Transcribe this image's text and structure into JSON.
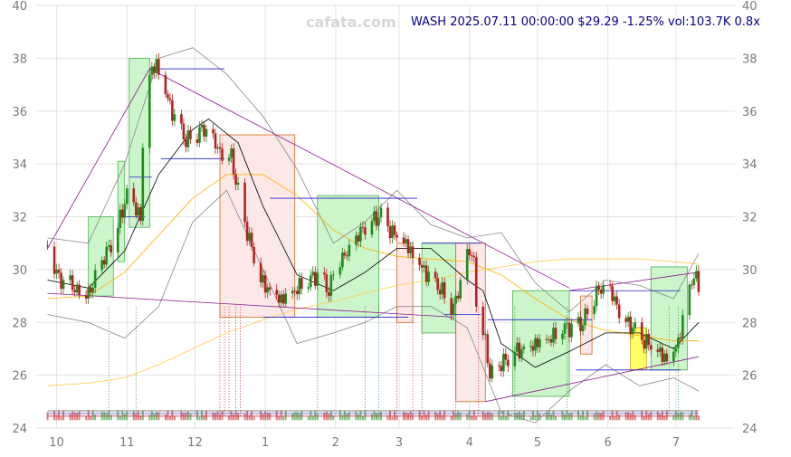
{
  "watermark": "cafata.com",
  "info_line": "WASH 2025.07.11 00:00:00 $29.29 -1.25% vol:103.7K 0.8x",
  "colors": {
    "up": "#1e8c1e",
    "down": "#b22222",
    "box_up_fill": "#ccf5cc",
    "box_down_fill": "#fde8e8",
    "box_yellow": "#ffff66",
    "ma_short": "#000000",
    "ma_mid": "#ffb000",
    "ma_long": "#ffcc44",
    "trend": "#8b1a8b",
    "level": "#2222cc",
    "band": "#888888"
  },
  "chart_data": {
    "type": "candlestick",
    "title": "WASH 2025.07.11 00:00:00 $29.29 -1.25% vol:103.7K 0.8x",
    "ticker": "WASH",
    "last_date": "2025.07.11",
    "last_close": 29.29,
    "change_pct": -1.25,
    "volume": "103.7K",
    "volume_ratio": "0.8x",
    "ylim": [
      24,
      40
    ],
    "xlim": [
      "2024-09-22",
      "2025-07-27"
    ],
    "y_ticks": [
      24,
      26,
      28,
      30,
      32,
      34,
      36,
      38,
      40
    ],
    "x_ticks": [
      {
        "date": "2024-10-01",
        "label": "10"
      },
      {
        "date": "2024-11-01",
        "label": "11"
      },
      {
        "date": "2024-12-01",
        "label": "12"
      },
      {
        "date": "2025-01-01",
        "label": "1"
      },
      {
        "date": "2025-02-01",
        "label": "2"
      },
      {
        "date": "2025-03-01",
        "label": "3"
      },
      {
        "date": "2025-04-01",
        "label": "4"
      },
      {
        "date": "2025-05-01",
        "label": "5"
      },
      {
        "date": "2025-06-01",
        "label": "6"
      },
      {
        "date": "2025-07-01",
        "label": "7"
      }
    ],
    "close_path": [
      [
        "2024-09-27",
        30.9
      ],
      [
        "2024-10-02",
        29.6
      ],
      [
        "2024-10-09",
        29.3
      ],
      [
        "2024-10-16",
        29.2
      ],
      [
        "2024-10-22",
        30.4
      ],
      [
        "2024-10-28",
        31.6
      ],
      [
        "2024-11-01",
        32.9
      ],
      [
        "2024-11-05",
        32.4
      ],
      [
        "2024-11-07",
        31.9
      ],
      [
        "2024-11-08",
        34.6
      ],
      [
        "2024-11-11",
        37.4
      ],
      [
        "2024-11-14",
        37.7
      ],
      [
        "2024-11-20",
        36.2
      ],
      [
        "2024-11-27",
        34.9
      ],
      [
        "2024-12-04",
        35.3
      ],
      [
        "2024-12-12",
        34.5
      ],
      [
        "2024-12-17",
        34.4
      ],
      [
        "2024-12-19",
        33.3
      ],
      [
        "2024-12-24",
        31.4
      ],
      [
        "2024-12-30",
        29.5
      ],
      [
        "2025-01-08",
        28.9
      ],
      [
        "2025-01-16",
        29.3
      ],
      [
        "2025-01-24",
        29.8
      ],
      [
        "2025-01-29",
        29.2
      ],
      [
        "2025-02-01",
        30.4
      ],
      [
        "2025-02-07",
        30.6
      ],
      [
        "2025-02-14",
        31.7
      ],
      [
        "2025-02-21",
        32.1
      ],
      [
        "2025-02-26",
        31.4
      ],
      [
        "2025-03-04",
        30.9
      ],
      [
        "2025-03-11",
        30.1
      ],
      [
        "2025-03-18",
        29.4
      ],
      [
        "2025-03-25",
        28.5
      ],
      [
        "2025-04-01",
        30.7
      ],
      [
        "2025-04-03",
        30.4
      ],
      [
        "2025-04-04",
        28.9
      ],
      [
        "2025-04-08",
        27.4
      ],
      [
        "2025-04-10",
        25.9
      ],
      [
        "2025-04-15",
        26.4
      ],
      [
        "2025-04-22",
        26.9
      ],
      [
        "2025-04-29",
        27.2
      ],
      [
        "2025-05-06",
        27.3
      ],
      [
        "2025-05-13",
        27.8
      ],
      [
        "2025-05-20",
        27.9
      ],
      [
        "2025-05-27",
        29.2
      ],
      [
        "2025-06-02",
        29.1
      ],
      [
        "2025-06-09",
        28.1
      ],
      [
        "2025-06-16",
        27.4
      ],
      [
        "2025-06-23",
        26.8
      ],
      [
        "2025-06-28",
        26.6
      ],
      [
        "2025-07-02",
        27.3
      ],
      [
        "2025-07-07",
        29.3
      ],
      [
        "2025-07-09",
        29.8
      ],
      [
        "2025-07-11",
        29.29
      ]
    ],
    "sma_short": [
      [
        "2024-09-27",
        29.6
      ],
      [
        "2024-10-15",
        29.3
      ],
      [
        "2024-10-31",
        30.7
      ],
      [
        "2024-11-15",
        33.6
      ],
      [
        "2024-11-30",
        35.3
      ],
      [
        "2024-12-07",
        35.7
      ],
      [
        "2024-12-20",
        34.8
      ],
      [
        "2024-12-31",
        32.4
      ],
      [
        "2025-01-15",
        29.8
      ],
      [
        "2025-01-31",
        29.2
      ],
      [
        "2025-02-14",
        29.9
      ],
      [
        "2025-02-28",
        30.8
      ],
      [
        "2025-03-15",
        30.8
      ],
      [
        "2025-03-31",
        29.6
      ],
      [
        "2025-04-07",
        29.2
      ],
      [
        "2025-04-15",
        27.2
      ],
      [
        "2025-04-30",
        26.3
      ],
      [
        "2025-05-15",
        26.9
      ],
      [
        "2025-05-31",
        27.6
      ],
      [
        "2025-06-15",
        27.6
      ],
      [
        "2025-06-30",
        27.0
      ],
      [
        "2025-07-11",
        28.0
      ]
    ],
    "sma_mid": [
      [
        "2024-09-27",
        28.9
      ],
      [
        "2024-10-15",
        29.0
      ],
      [
        "2024-10-31",
        29.9
      ],
      [
        "2024-11-15",
        31.3
      ],
      [
        "2024-11-30",
        32.7
      ],
      [
        "2024-12-15",
        33.6
      ],
      [
        "2024-12-31",
        33.6
      ],
      [
        "2025-01-15",
        32.8
      ],
      [
        "2025-01-31",
        31.5
      ],
      [
        "2025-02-14",
        30.8
      ],
      [
        "2025-02-28",
        30.5
      ],
      [
        "2025-03-15",
        30.4
      ],
      [
        "2025-03-31",
        30.3
      ],
      [
        "2025-04-15",
        29.8
      ],
      [
        "2025-04-30",
        28.9
      ],
      [
        "2025-05-15",
        28.1
      ],
      [
        "2025-05-31",
        27.7
      ],
      [
        "2025-06-15",
        27.5
      ],
      [
        "2025-06-30",
        27.3
      ],
      [
        "2025-07-11",
        27.3
      ]
    ],
    "sma_long": [
      [
        "2024-09-27",
        25.6
      ],
      [
        "2024-10-15",
        25.7
      ],
      [
        "2024-10-31",
        25.9
      ],
      [
        "2024-11-15",
        26.4
      ],
      [
        "2024-11-30",
        27.0
      ],
      [
        "2024-12-15",
        27.6
      ],
      [
        "2024-12-31",
        28.1
      ],
      [
        "2025-01-15",
        28.5
      ],
      [
        "2025-01-31",
        28.8
      ],
      [
        "2025-02-14",
        29.1
      ],
      [
        "2025-02-28",
        29.4
      ],
      [
        "2025-03-15",
        29.6
      ],
      [
        "2025-03-31",
        29.9
      ],
      [
        "2025-04-15",
        30.1
      ],
      [
        "2025-04-30",
        30.3
      ],
      [
        "2025-05-15",
        30.4
      ],
      [
        "2025-05-31",
        30.4
      ],
      [
        "2025-06-15",
        30.4
      ],
      [
        "2025-06-30",
        30.3
      ],
      [
        "2025-07-11",
        30.2
      ]
    ],
    "band_upper": [
      [
        "2024-09-27",
        31.2
      ],
      [
        "2024-10-15",
        31.0
      ],
      [
        "2024-10-31",
        34.0
      ],
      [
        "2024-11-15",
        38.0
      ],
      [
        "2024-11-30",
        38.4
      ],
      [
        "2024-12-15",
        37.4
      ],
      [
        "2024-12-31",
        35.8
      ],
      [
        "2025-01-15",
        33.8
      ],
      [
        "2025-01-31",
        31.0
      ],
      [
        "2025-02-14",
        31.8
      ],
      [
        "2025-02-28",
        33.0
      ],
      [
        "2025-03-15",
        31.7
      ],
      [
        "2025-03-31",
        31.2
      ],
      [
        "2025-04-15",
        31.4
      ],
      [
        "2025-04-30",
        29.5
      ],
      [
        "2025-05-15",
        28.4
      ],
      [
        "2025-05-31",
        29.6
      ],
      [
        "2025-06-15",
        29.4
      ],
      [
        "2025-06-30",
        28.9
      ],
      [
        "2025-07-11",
        30.6
      ]
    ],
    "band_lower": [
      [
        "2024-09-27",
        28.3
      ],
      [
        "2024-10-15",
        28.0
      ],
      [
        "2024-10-31",
        27.4
      ],
      [
        "2024-11-15",
        28.6
      ],
      [
        "2024-11-30",
        31.8
      ],
      [
        "2024-12-15",
        33.0
      ],
      [
        "2024-12-31",
        30.0
      ],
      [
        "2025-01-15",
        27.2
      ],
      [
        "2025-01-31",
        27.6
      ],
      [
        "2025-02-14",
        28.0
      ],
      [
        "2025-02-28",
        28.6
      ],
      [
        "2025-03-15",
        28.6
      ],
      [
        "2025-03-31",
        27.8
      ],
      [
        "2025-04-15",
        24.6
      ],
      [
        "2025-04-30",
        24.2
      ],
      [
        "2025-05-15",
        25.4
      ],
      [
        "2025-05-31",
        26.4
      ],
      [
        "2025-06-15",
        25.6
      ],
      [
        "2025-06-30",
        25.9
      ],
      [
        "2025-07-11",
        25.4
      ]
    ],
    "zones": [
      {
        "start": "2024-10-15",
        "end": "2024-10-26",
        "low": 29.0,
        "high": 32.0,
        "dir": "up"
      },
      {
        "start": "2024-10-28",
        "end": "2024-10-31",
        "low": 30.3,
        "high": 34.1,
        "dir": "up"
      },
      {
        "start": "2024-11-02",
        "end": "2024-11-11",
        "low": 31.6,
        "high": 38.0,
        "dir": "up"
      },
      {
        "start": "2024-12-12",
        "end": "2025-01-14",
        "low": 28.2,
        "high": 35.1,
        "dir": "down"
      },
      {
        "start": "2025-01-24",
        "end": "2025-02-20",
        "low": 28.2,
        "high": 32.8,
        "dir": "up"
      },
      {
        "start": "2025-02-28",
        "end": "2025-03-07",
        "low": 28.0,
        "high": 31.0,
        "dir": "down"
      },
      {
        "start": "2025-03-11",
        "end": "2025-03-26",
        "low": 27.6,
        "high": 31.0,
        "dir": "up"
      },
      {
        "start": "2025-03-26",
        "end": "2025-04-08",
        "low": 25.0,
        "high": 31.0,
        "dir": "down"
      },
      {
        "start": "2025-04-20",
        "end": "2025-05-15",
        "low": 25.2,
        "high": 29.2,
        "dir": "up"
      },
      {
        "start": "2025-05-20",
        "end": "2025-05-25",
        "low": 26.8,
        "high": 29.0,
        "dir": "down"
      },
      {
        "start": "2025-06-11",
        "end": "2025-06-18",
        "low": 26.2,
        "high": 27.8,
        "dir": "yellow"
      },
      {
        "start": "2025-06-20",
        "end": "2025-07-06",
        "low": 26.2,
        "high": 30.1,
        "dir": "up"
      }
    ],
    "trend_lines": [
      [
        [
          "2024-09-27",
          30.8
        ],
        [
          "2024-11-11",
          37.6
        ]
      ],
      [
        [
          "2024-11-11",
          37.6
        ],
        [
          "2025-05-15",
          29.3
        ]
      ],
      [
        [
          "2024-09-27",
          29.1
        ],
        [
          "2025-03-25",
          28.2
        ]
      ],
      [
        [
          "2025-04-08",
          25.0
        ],
        [
          "2025-07-11",
          26.7
        ]
      ],
      [
        [
          "2025-05-15",
          29.2
        ],
        [
          "2025-07-11",
          29.9
        ]
      ]
    ],
    "level_lines": [
      {
        "start": "2024-11-11",
        "end": "2024-12-14",
        "value": 37.6
      },
      {
        "start": "2024-11-16",
        "end": "2024-12-14",
        "value": 34.2
      },
      {
        "start": "2024-11-02",
        "end": "2024-11-12",
        "value": 33.5
      },
      {
        "start": "2024-10-29",
        "end": "2024-11-09",
        "value": 32.0
      },
      {
        "start": "2025-01-03",
        "end": "2025-03-09",
        "value": 32.7
      },
      {
        "start": "2024-12-31",
        "end": "2025-03-05",
        "value": 28.2
      },
      {
        "start": "2025-03-21",
        "end": "2025-04-06",
        "value": 28.3
      },
      {
        "start": "2025-03-11",
        "end": "2025-04-06",
        "value": 31.0
      },
      {
        "start": "2025-04-09",
        "end": "2025-05-25",
        "value": 28.1
      },
      {
        "start": "2025-05-15",
        "end": "2025-07-03",
        "value": 29.2
      },
      {
        "start": "2025-05-18",
        "end": "2025-07-03",
        "value": 26.2
      }
    ],
    "signal_lines": [
      {
        "date": "2024-10-24",
        "dir": "up"
      },
      {
        "date": "2024-11-05",
        "dir": "up"
      },
      {
        "date": "2024-12-12",
        "dir": "down"
      },
      {
        "date": "2024-12-14",
        "dir": "down"
      },
      {
        "date": "2024-12-16",
        "dir": "down"
      },
      {
        "date": "2024-12-19",
        "dir": "down"
      },
      {
        "date": "2024-12-21",
        "dir": "down"
      },
      {
        "date": "2025-01-24",
        "dir": "up"
      },
      {
        "date": "2025-02-14",
        "dir": "up"
      },
      {
        "date": "2025-02-20",
        "dir": "up"
      },
      {
        "date": "2025-02-28",
        "dir": "down"
      },
      {
        "date": "2025-03-07",
        "dir": "down"
      },
      {
        "date": "2025-03-11",
        "dir": "down"
      },
      {
        "date": "2025-03-26",
        "dir": "down"
      },
      {
        "date": "2025-04-05",
        "dir": "down"
      },
      {
        "date": "2025-04-21",
        "dir": "up"
      },
      {
        "date": "2025-05-14",
        "dir": "up"
      },
      {
        "date": "2025-06-28",
        "dir": "up"
      },
      {
        "date": "2025-07-02",
        "dir": "up"
      }
    ]
  }
}
